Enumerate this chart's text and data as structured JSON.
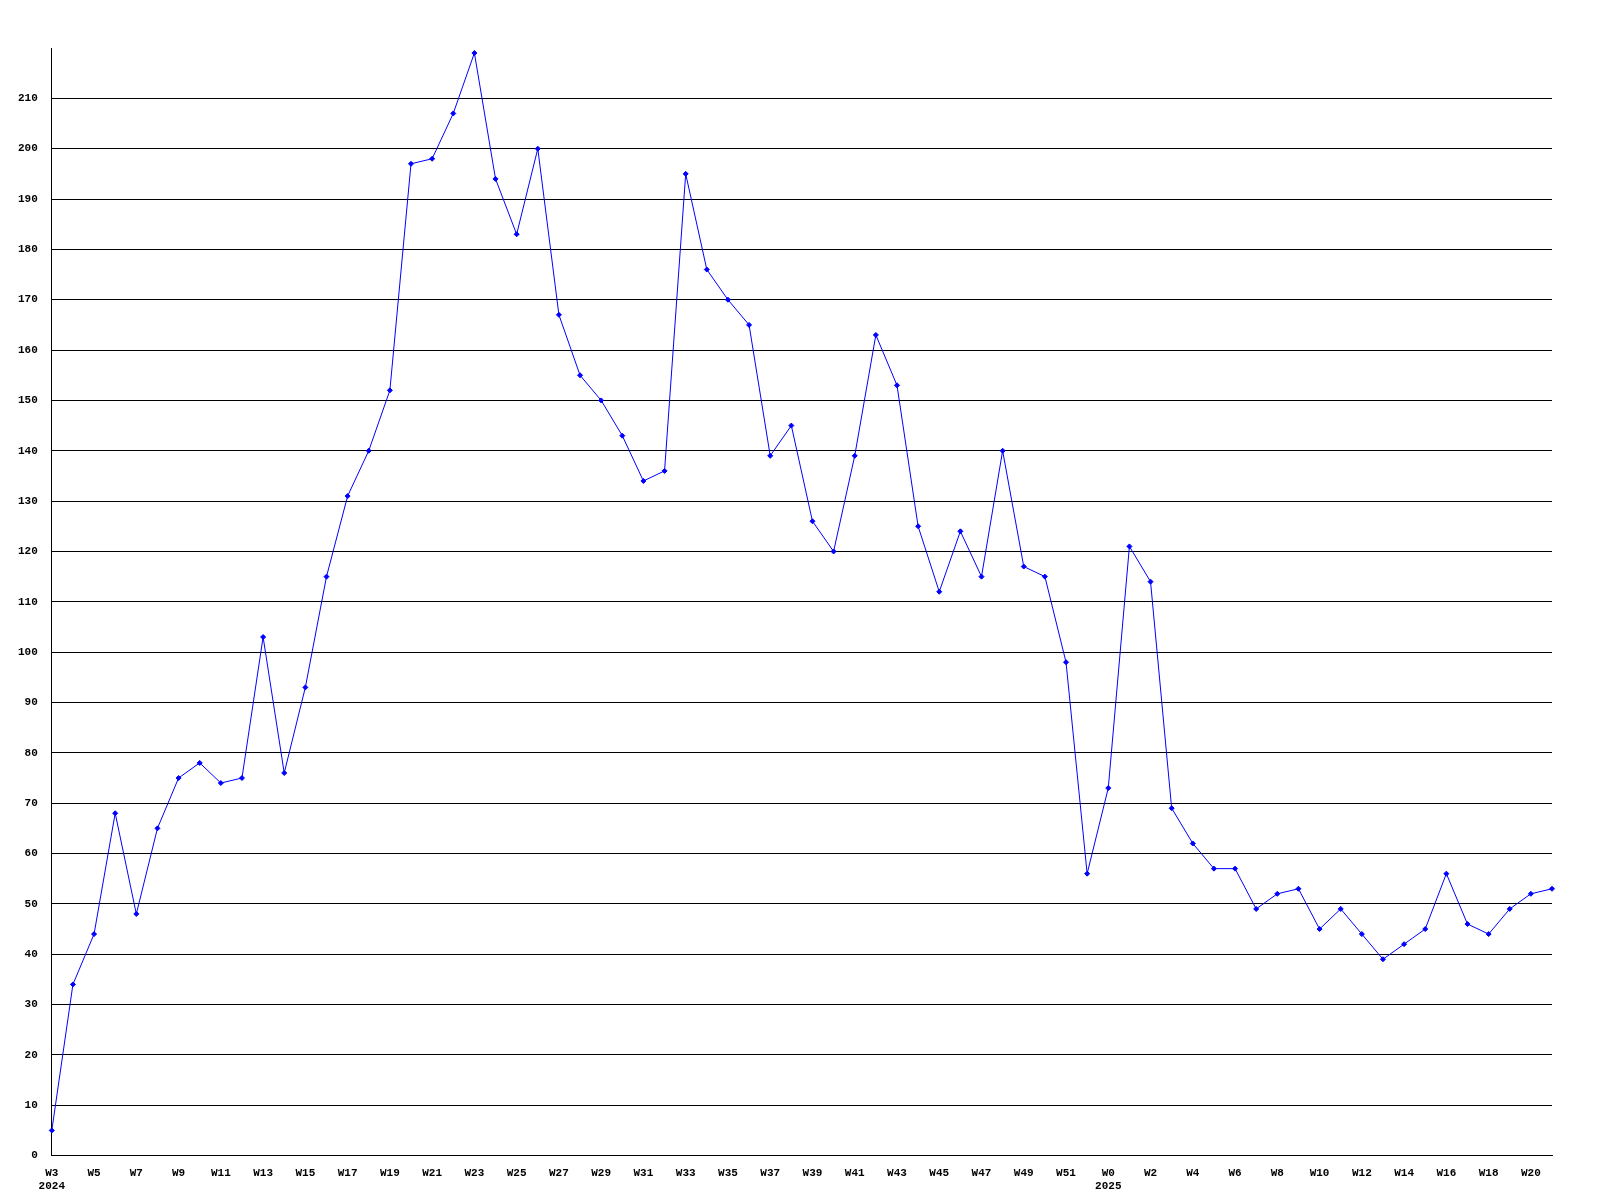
{
  "chart_data": {
    "type": "line",
    "categories": [
      "W3\n2024",
      null,
      "W5",
      null,
      "W7",
      null,
      "W9",
      null,
      "W11",
      null,
      "W13",
      null,
      "W15",
      null,
      "W17",
      null,
      "W19",
      null,
      "W21",
      null,
      "W23",
      null,
      "W25",
      null,
      "W27",
      null,
      "W29",
      null,
      "W31",
      null,
      "W33",
      null,
      "W35",
      null,
      "W37",
      null,
      "W39",
      null,
      "W41",
      null,
      "W43",
      null,
      "W45",
      null,
      "W47",
      null,
      "W49",
      null,
      "W51",
      null,
      "W0\n2025",
      null,
      "W2",
      null,
      "W4",
      null,
      "W6",
      null,
      "W8",
      null,
      "W10",
      null,
      "W12",
      null,
      "W14",
      null,
      "W16",
      null,
      "W18",
      null,
      "W20",
      null
    ],
    "series": [
      {
        "color": "#0000ff",
        "values": [
          5,
          34,
          44,
          68,
          48,
          65,
          75,
          78,
          74,
          75,
          103,
          76,
          93,
          115,
          131,
          140,
          152,
          197,
          198,
          207,
          219,
          194,
          183,
          200,
          167,
          155,
          150,
          143,
          134,
          136,
          195,
          176,
          170,
          165,
          139,
          145,
          126,
          120,
          139,
          163,
          153,
          125,
          112,
          124,
          115,
          140,
          117,
          115,
          98,
          56,
          73,
          121,
          114,
          69,
          62,
          57,
          57,
          49,
          52,
          53,
          45,
          49,
          44,
          39,
          42,
          45,
          56,
          46,
          44,
          49,
          52,
          53
        ]
      }
    ],
    "ylim": [
      0,
      220
    ],
    "yticks": [
      0,
      10,
      20,
      30,
      40,
      50,
      60,
      70,
      80,
      90,
      100,
      110,
      120,
      130,
      140,
      150,
      160,
      170,
      180,
      190,
      200,
      210
    ],
    "grid": "y",
    "marker": "diamond",
    "line_style": "solid",
    "legend": false
  }
}
